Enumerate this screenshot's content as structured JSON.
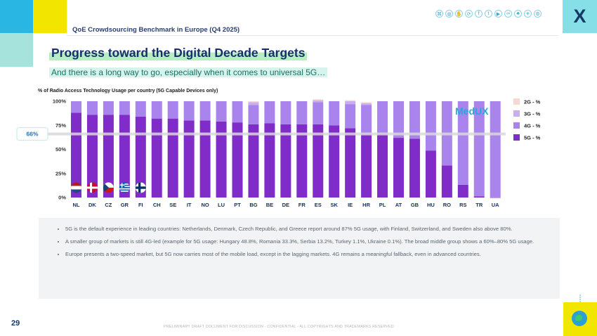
{
  "header": {
    "bench_title": "QoE Crowdsourcing Benchmark in Europe (Q4 2025)",
    "logo_text": "X",
    "icons": [
      "network-icon",
      "globe-icon",
      "handshake-icon",
      "share-icon",
      "facebook-icon",
      "twitter-icon",
      "youtube-icon",
      "link-icon",
      "tree-icon",
      "plant-icon",
      "gear-icon"
    ]
  },
  "title": "Progress toward the Digital Decade Targets",
  "subtitle": "And there is a long way to go, especially when it comes to universal 5G…",
  "chart_data": {
    "type": "bar",
    "stacked": true,
    "title": "% of Radio Access Technology Usage per country (5G Capable Devices only)",
    "categories": [
      "NL",
      "DK",
      "CZ",
      "GR",
      "FI",
      "CH",
      "SE",
      "IT",
      "NO",
      "LU",
      "PT",
      "BG",
      "BE",
      "DE",
      "FR",
      "ES",
      "SK",
      "IE",
      "HR",
      "PL",
      "AT",
      "GB",
      "HU",
      "RO",
      "RS",
      "TR",
      "UA"
    ],
    "series": [
      {
        "name": "2G - %",
        "color": "#f7d7d3",
        "values": [
          0,
          0,
          0,
          0,
          0,
          0,
          0,
          0,
          0,
          0,
          0,
          1,
          0,
          0,
          0,
          1,
          0,
          1,
          1,
          0,
          0,
          0,
          0,
          0,
          0,
          0,
          0
        ]
      },
      {
        "name": "3G - %",
        "color": "#c9aef2",
        "values": [
          0,
          0,
          0,
          0,
          0,
          0,
          0,
          0,
          0,
          0,
          0,
          3,
          0,
          0,
          0,
          2,
          0,
          3,
          2,
          0,
          0,
          0,
          0,
          0,
          0,
          0,
          0
        ]
      },
      {
        "name": "4G - %",
        "color": "#a884ec",
        "values": [
          12,
          14,
          14,
          14,
          16,
          18,
          18,
          20,
          20,
          21,
          22,
          20,
          23,
          24,
          24,
          23,
          25,
          25,
          30,
          34,
          38,
          39,
          51.2,
          66.7,
          86.8,
          98.9,
          99.9
        ]
      },
      {
        "name": "5G - %",
        "color": "#7f2cc8",
        "values": [
          88,
          86,
          86,
          86,
          84,
          82,
          82,
          80,
          80,
          79,
          78,
          76,
          77,
          76,
          76,
          76,
          75,
          72,
          66,
          66,
          62,
          61,
          48.8,
          33.3,
          13.2,
          1.1,
          0.1
        ]
      }
    ],
    "legend_order": [
      "2G - %",
      "3G - %",
      "4G - %",
      "5G - %"
    ],
    "y_ticks": [
      "100%",
      "75%",
      "50%",
      "25%",
      "0%"
    ],
    "ylim": [
      0,
      100
    ],
    "target": {
      "value": 66,
      "label": "66%"
    },
    "watermark": "MedUX",
    "flags": {
      "NL": [
        "#ae1c28",
        "#ffffff",
        "#21468b"
      ],
      "DK": "nordic-red",
      "CZ": "czech",
      "GR": "greek",
      "FI": "nordic-blue"
    },
    "legend_position": "right",
    "grid": false
  },
  "notes": [
    "5G is the default experience in leading countries: Netherlands, Denmark, Czech Republic, and Greece report around 87% 5G usage, with Finland, Switzerland, and Sweden also above 80%.",
    "A smaller group of markets is still 4G-led (example for 5G usage: Hungary 48.8%, Romania 33.3%, Serbia 13.2%, Turkey 1.1%, Ukraine 0.1%). The broad middle group shows a 60%–80% 5G usage.",
    "Europe presents a two-speed market, but 5G now carries most of the mobile load, except in the lagging markets. 4G remains a meaningful fallback, even in advanced countries."
  ],
  "page_number": "29",
  "footer": "PRELIMINARY DRAFT DOCUMENT FOR DISCUSSION - CONFIDENTIAL - ALL COPYRIGHTS AND TRADEMARKS RESERVED"
}
